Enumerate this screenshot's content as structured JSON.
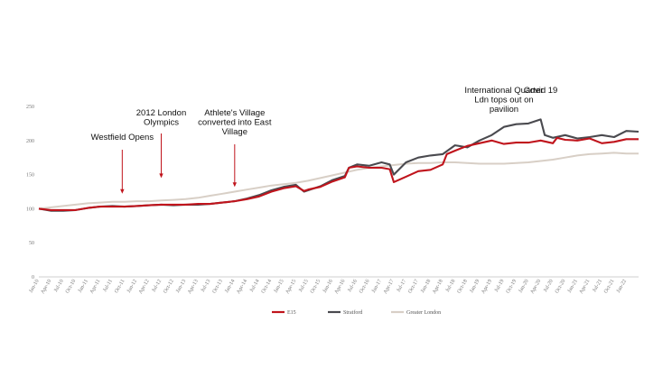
{
  "chart_data": {
    "type": "line",
    "ylim": [
      0,
      250
    ],
    "y_ticks": [
      "0",
      "50",
      "100",
      "150",
      "200",
      "250"
    ],
    "x_tick_labels": [
      "Jan-10",
      "Apr-10",
      "Jul-10",
      "Oct-10",
      "Jan-11",
      "Apr-11",
      "Jul-11",
      "Oct-11",
      "Jan-12",
      "Apr-12",
      "Jul-12",
      "Oct-12",
      "Jan-13",
      "Apr-13",
      "Jul-13",
      "Oct-13",
      "Jan-14",
      "Apr-14",
      "Jul-14",
      "Oct-14",
      "Jan-15",
      "Apr-15",
      "Jul-15",
      "Oct-15",
      "Jan-16",
      "Apr-16",
      "Jul-16",
      "Oct-16",
      "Jan-17",
      "Apr-17",
      "Jul-17",
      "Oct-17",
      "Jan-18",
      "Apr-18",
      "Jul-18",
      "Oct-18",
      "Jan-19",
      "Apr-19",
      "Jul-19",
      "Oct-19",
      "Jan-20",
      "Apr-20",
      "Jul-20",
      "Oct-20",
      "Jan-21",
      "Apr-21",
      "Jul-21",
      "Oct-21",
      "Jan-22"
    ],
    "grid": false,
    "legend_position": "bottom-center",
    "series": [
      {
        "name": "E15",
        "color": "#c0141c",
        "points": [
          [
            "Jan-10",
            100
          ],
          [
            "Apr-10",
            98
          ],
          [
            "Jul-10",
            98
          ],
          [
            "Oct-10",
            98
          ],
          [
            "Jan-11",
            101
          ],
          [
            "Apr-11",
            103
          ],
          [
            "Jul-11",
            103
          ],
          [
            "Oct-11",
            103
          ],
          [
            "Jan-12",
            104
          ],
          [
            "Apr-12",
            105
          ],
          [
            "Jul-12",
            106
          ],
          [
            "Oct-12",
            106
          ],
          [
            "Jan-13",
            106
          ],
          [
            "Apr-13",
            107
          ],
          [
            "Jul-13",
            107
          ],
          [
            "Oct-13",
            109
          ],
          [
            "Jan-14",
            111
          ],
          [
            "Apr-14",
            114
          ],
          [
            "Jul-14",
            118
          ],
          [
            "Oct-14",
            125
          ],
          [
            "Jan-15",
            130
          ],
          [
            "Apr-15",
            133
          ],
          [
            "Jun-15",
            126
          ],
          [
            "Jul-15",
            128
          ],
          [
            "Oct-15",
            132
          ],
          [
            "Jan-16",
            140
          ],
          [
            "Apr-16",
            146
          ],
          [
            "May-16",
            160
          ],
          [
            "Jul-16",
            162
          ],
          [
            "Oct-16",
            160
          ],
          [
            "Jan-17",
            160
          ],
          [
            "Mar-17",
            158
          ],
          [
            "Apr-17",
            139
          ],
          [
            "Jul-17",
            147
          ],
          [
            "Oct-17",
            155
          ],
          [
            "Jan-18",
            157
          ],
          [
            "Apr-18",
            165
          ],
          [
            "May-18",
            180
          ],
          [
            "Jul-18",
            185
          ],
          [
            "Oct-18",
            192
          ],
          [
            "Jan-19",
            196
          ],
          [
            "Apr-19",
            200
          ],
          [
            "Jul-19",
            195
          ],
          [
            "Oct-19",
            197
          ],
          [
            "Jan-20",
            197
          ],
          [
            "Apr-20",
            200
          ],
          [
            "Jul-20",
            196
          ],
          [
            "Aug-20",
            204
          ],
          [
            "Oct-20",
            201
          ],
          [
            "Jan-21",
            200
          ],
          [
            "Apr-21",
            203
          ],
          [
            "Jul-21",
            196
          ],
          [
            "Oct-21",
            198
          ],
          [
            "Jan-22",
            202
          ],
          [
            "Apr-22",
            202
          ]
        ]
      },
      {
        "name": "Stratford",
        "color": "#4a4a4f",
        "points": [
          [
            "Jan-10",
            100
          ],
          [
            "Apr-10",
            97
          ],
          [
            "Jul-10",
            97
          ],
          [
            "Oct-10",
            98
          ],
          [
            "Jan-11",
            101
          ],
          [
            "Apr-11",
            103
          ],
          [
            "Jul-11",
            104
          ],
          [
            "Oct-11",
            103
          ],
          [
            "Jan-12",
            104
          ],
          [
            "Apr-12",
            105
          ],
          [
            "Jul-12",
            106
          ],
          [
            "Oct-12",
            105
          ],
          [
            "Jan-13",
            106
          ],
          [
            "Apr-13",
            106
          ],
          [
            "Jul-13",
            107
          ],
          [
            "Oct-13",
            109
          ],
          [
            "Jan-14",
            111
          ],
          [
            "Apr-14",
            115
          ],
          [
            "Jul-14",
            120
          ],
          [
            "Oct-14",
            127
          ],
          [
            "Jan-15",
            132
          ],
          [
            "Apr-15",
            135
          ],
          [
            "Jun-15",
            125
          ],
          [
            "Jul-15",
            127
          ],
          [
            "Oct-15",
            133
          ],
          [
            "Jan-16",
            142
          ],
          [
            "Apr-16",
            148
          ],
          [
            "May-16",
            160
          ],
          [
            "Jul-16",
            165
          ],
          [
            "Oct-16",
            163
          ],
          [
            "Jan-17",
            168
          ],
          [
            "Mar-17",
            165
          ],
          [
            "Apr-17",
            150
          ],
          [
            "Jul-17",
            168
          ],
          [
            "Oct-17",
            175
          ],
          [
            "Jan-18",
            178
          ],
          [
            "Apr-18",
            180
          ],
          [
            "Jul-18",
            193
          ],
          [
            "Oct-18",
            190
          ],
          [
            "Jan-19",
            200
          ],
          [
            "Apr-19",
            208
          ],
          [
            "Jul-19",
            220
          ],
          [
            "Oct-19",
            224
          ],
          [
            "Jan-20",
            225
          ],
          [
            "Apr-20",
            231
          ],
          [
            "May-20",
            208
          ],
          [
            "Jul-20",
            204
          ],
          [
            "Oct-20",
            208
          ],
          [
            "Jan-21",
            203
          ],
          [
            "Apr-21",
            205
          ],
          [
            "Jul-21",
            208
          ],
          [
            "Oct-21",
            205
          ],
          [
            "Jan-22",
            214
          ],
          [
            "Apr-22",
            213
          ]
        ]
      },
      {
        "name": "Greater London",
        "color": "#d8cfc6",
        "points": [
          [
            "Jan-10",
            100
          ],
          [
            "Apr-10",
            102
          ],
          [
            "Jul-10",
            104
          ],
          [
            "Oct-10",
            106
          ],
          [
            "Jan-11",
            108
          ],
          [
            "Apr-11",
            109
          ],
          [
            "Jul-11",
            110
          ],
          [
            "Oct-11",
            110
          ],
          [
            "Jan-12",
            111
          ],
          [
            "Apr-12",
            111
          ],
          [
            "Jul-12",
            112
          ],
          [
            "Oct-12",
            113
          ],
          [
            "Jan-13",
            114
          ],
          [
            "Apr-13",
            116
          ],
          [
            "Jul-13",
            119
          ],
          [
            "Oct-13",
            122
          ],
          [
            "Jan-14",
            125
          ],
          [
            "Apr-14",
            128
          ],
          [
            "Jul-14",
            131
          ],
          [
            "Oct-14",
            134
          ],
          [
            "Jan-15",
            136
          ],
          [
            "Apr-15",
            138
          ],
          [
            "Jul-15",
            141
          ],
          [
            "Oct-15",
            145
          ],
          [
            "Jan-16",
            149
          ],
          [
            "Apr-16",
            153
          ],
          [
            "Jul-16",
            157
          ],
          [
            "Oct-16",
            160
          ],
          [
            "Jan-17",
            162
          ],
          [
            "Apr-17",
            164
          ],
          [
            "Jul-17",
            166
          ],
          [
            "Oct-17",
            167
          ],
          [
            "Jan-18",
            167
          ],
          [
            "Apr-18",
            168
          ],
          [
            "Jul-18",
            168
          ],
          [
            "Oct-18",
            167
          ],
          [
            "Jan-19",
            166
          ],
          [
            "Apr-19",
            166
          ],
          [
            "Jul-19",
            166
          ],
          [
            "Oct-19",
            167
          ],
          [
            "Jan-20",
            168
          ],
          [
            "Apr-20",
            170
          ],
          [
            "Jul-20",
            172
          ],
          [
            "Oct-20",
            175
          ],
          [
            "Jan-21",
            178
          ],
          [
            "Apr-21",
            180
          ],
          [
            "Jul-21",
            181
          ],
          [
            "Oct-21",
            182
          ],
          [
            "Jan-22",
            181
          ],
          [
            "Apr-22",
            181
          ]
        ]
      }
    ],
    "annotations": [
      {
        "lines": [
          "Westfield Opens"
        ],
        "x": "Sep-11",
        "arrow_to": 122
      },
      {
        "lines": [
          "2012 London",
          "Olympics"
        ],
        "x": "Jul-12",
        "arrow_to": 145
      },
      {
        "lines": [
          "Athlete's Village",
          "converted into East",
          "Village"
        ],
        "x": "Jan-14",
        "arrow_to": 132
      },
      {
        "lines": [
          "International Quarter",
          "Ldn tops out on",
          "pavilion"
        ],
        "x": "Jul-19"
      },
      {
        "lines": [
          "Covid 19"
        ],
        "x": "Apr-20"
      }
    ]
  }
}
